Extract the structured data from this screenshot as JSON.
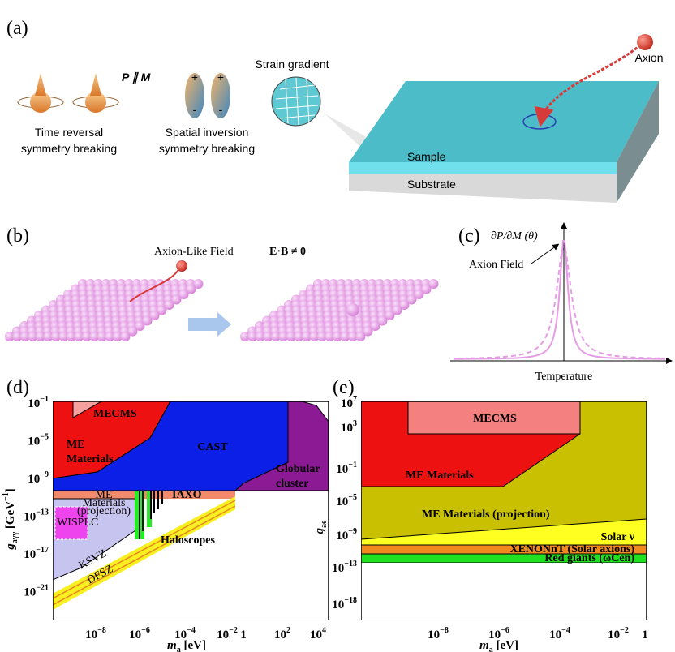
{
  "panel_a": {
    "label": "(a)",
    "p_parallel_m": "P ∥ M",
    "time_reversal": [
      "Time reversal",
      "symmetry breaking"
    ],
    "spatial_inversion": [
      "Spatial inversion",
      "symmetry breaking"
    ],
    "strain_gradient": "Strain gradient",
    "axion": "Axion",
    "sample": "Sample",
    "substrate": "Substrate",
    "charges": [
      "+",
      "-",
      "+",
      "-"
    ]
  },
  "panel_b": {
    "label": "(b)",
    "field": "Axion-Like Field",
    "equation": "E·B ≠ 0"
  },
  "panel_c": {
    "label": "(c)",
    "y_label": "∂P/∂M (θ)",
    "peak": "Axion Field",
    "x_label": "Temperature"
  },
  "panel_d": {
    "label": "(d)",
    "y_label": [
      "g",
      "aγγ",
      " [GeV",
      "−1",
      "]"
    ],
    "x_label": [
      "m",
      "a",
      " [eV]"
    ],
    "xticks": [
      {
        "base": "10",
        "exp": "−8"
      },
      {
        "base": "10",
        "exp": "−6"
      },
      {
        "base": "10",
        "exp": "−4"
      },
      {
        "base": "10",
        "exp": "−2"
      },
      {
        "base": "1"
      },
      {
        "base": "10",
        "exp": "2"
      },
      {
        "base": "10",
        "exp": "4"
      }
    ],
    "yticks": [
      {
        "base": "10",
        "exp": "−1"
      },
      {
        "base": "10",
        "exp": "−5"
      },
      {
        "base": "10",
        "exp": "−9"
      },
      {
        "base": "10",
        "exp": "−13"
      },
      {
        "base": "10",
        "exp": "−17"
      },
      {
        "base": "10",
        "exp": "−21"
      }
    ],
    "regions": {
      "mecms": "MECMS",
      "me_materials": [
        "ME",
        "Materials"
      ],
      "cast": "CAST",
      "globular": [
        "Globular",
        "cluster"
      ],
      "projection": [
        "ME",
        "Materials",
        "(projection)"
      ],
      "wisplc": "WISPLC",
      "iaxo": "IAXO",
      "ksvz": "KSVZ",
      "dfsz": "DFSZ",
      "haloscopes": "Haloscopes"
    }
  },
  "panel_e": {
    "label": "(e)",
    "y_label": [
      "g",
      "ae"
    ],
    "x_label": [
      "m",
      "a",
      " [eV]"
    ],
    "xticks": [
      {
        "base": "10",
        "exp": "−8"
      },
      {
        "base": "10",
        "exp": "−6"
      },
      {
        "base": "10",
        "exp": "−4"
      },
      {
        "base": "10",
        "exp": "−2"
      },
      {
        "base": "1"
      }
    ],
    "yticks": [
      {
        "base": "10",
        "exp": "7"
      },
      {
        "base": "10",
        "exp": "3"
      },
      {
        "base": "10",
        "exp": "−1"
      },
      {
        "base": "10",
        "exp": "−5"
      },
      {
        "base": "10",
        "exp": "−9"
      },
      {
        "base": "10",
        "exp": "−13"
      },
      {
        "base": "10",
        "exp": "−18"
      }
    ],
    "regions": {
      "mecms": "MECMS",
      "me_materials": "ME Materials",
      "projection": "ME Materials (projection)",
      "solar": "Solar ν",
      "xenon": "XENONnT (Solar axions)",
      "red_giants": "Red giants (ωCen)"
    }
  }
}
